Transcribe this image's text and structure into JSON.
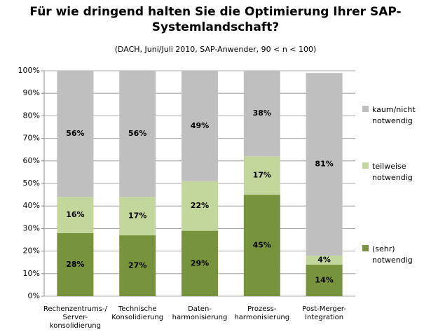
{
  "chart_data": {
    "type": "stacked_bar",
    "title": "Für wie dringend halten Sie die Optimierung Ihrer SAP-\nSystemlandschaft?",
    "subtitle": "(DACH, Juni/Juli 2010, SAP-Anwender, 90 < n < 100)",
    "categories": [
      "Rechenzentrums-/\nServer-\nkonsolidierung",
      "Technische\nKonsolidierung",
      "Daten-\nharmonisierung",
      "Prozess-\nharmonisierung",
      "Post-Merger-\nIntegration"
    ],
    "series": [
      {
        "name": "(sehr)\nnotwendig",
        "color": "#77933c",
        "values": [
          28,
          27,
          29,
          45,
          14
        ],
        "value_labels": [
          "28%",
          "27%",
          "29%",
          "45%",
          "14%"
        ]
      },
      {
        "name": "teilweise\nnotwendig",
        "color": "#c3d69b",
        "values": [
          16,
          17,
          22,
          17,
          4
        ],
        "value_labels": [
          "16%",
          "17%",
          "22%",
          "17%",
          "4%"
        ]
      },
      {
        "name": "kaum/nicht\nnotwendig",
        "color": "#bfbfbf",
        "values": [
          56,
          56,
          49,
          38,
          81
        ],
        "value_labels": [
          "56%",
          "56%",
          "49%",
          "38%",
          "81%"
        ]
      }
    ],
    "ylim": [
      0,
      100
    ],
    "yticks": [
      {
        "value": 0,
        "label": "0%"
      },
      {
        "value": 10,
        "label": "10%"
      },
      {
        "value": 20,
        "label": "20%"
      },
      {
        "value": 30,
        "label": "30%"
      },
      {
        "value": 40,
        "label": "40%"
      },
      {
        "value": 50,
        "label": "50%"
      },
      {
        "value": 60,
        "label": "60%"
      },
      {
        "value": 70,
        "label": "70%"
      },
      {
        "value": 80,
        "label": "80%"
      },
      {
        "value": 90,
        "label": "90%"
      },
      {
        "value": 100,
        "label": "100%"
      }
    ],
    "grid": true,
    "legend": "right"
  }
}
